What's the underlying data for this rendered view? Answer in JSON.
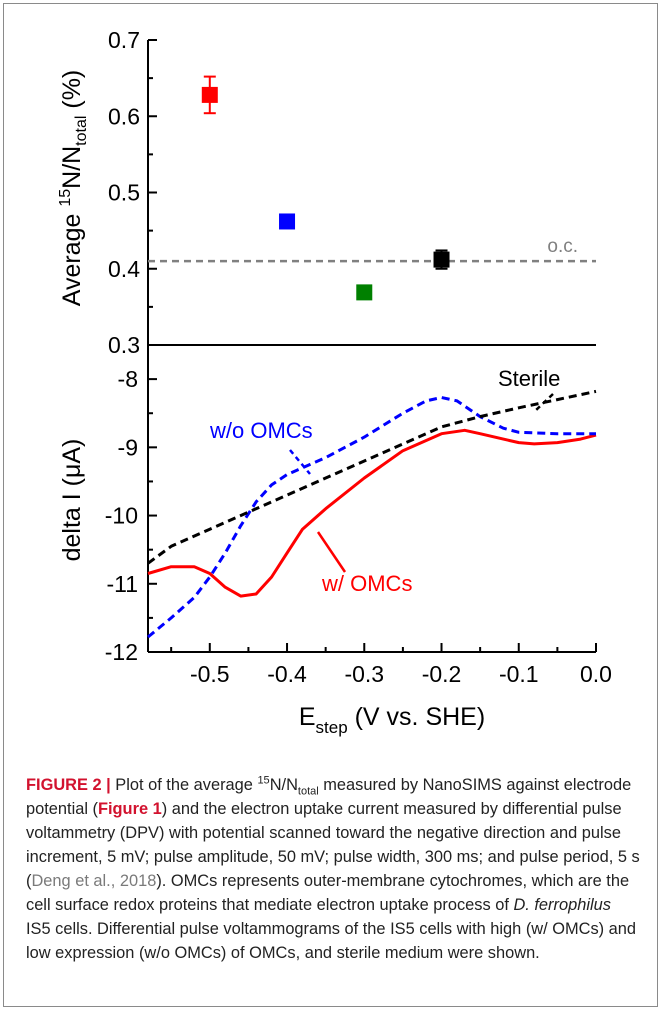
{
  "chart_data": [
    {
      "type": "scatter",
      "ylabel_parts": [
        "Average ",
        "15",
        "N/N",
        "total",
        " (%)"
      ],
      "ylim": [
        0.3,
        0.7
      ],
      "yticks": [
        "0.3",
        "0.4",
        "0.5",
        "0.6",
        "0.7"
      ],
      "xlim": [
        -0.58,
        0.0
      ],
      "points": [
        {
          "x": -0.5,
          "y": 0.628,
          "err": 0.024,
          "color": "#ff0000"
        },
        {
          "x": -0.4,
          "y": 0.462,
          "err": 0,
          "color": "#0000ff"
        },
        {
          "x": -0.3,
          "y": 0.369,
          "err": 0,
          "color": "#008000"
        },
        {
          "x": -0.2,
          "y": 0.412,
          "err": 0.012,
          "color": "#000000"
        }
      ],
      "reference_line": {
        "y": 0.41,
        "label": "o.c.",
        "color": "#808080"
      }
    },
    {
      "type": "line",
      "ylabel": "delta I (μA)",
      "xlabel_parts": [
        "E",
        "step",
        " (V vs. SHE)"
      ],
      "xlim": [
        -0.58,
        0.0
      ],
      "ylim": [
        -12,
        -7.5
      ],
      "yticks": [
        "-8",
        "-9",
        "-10",
        "-11",
        "-12"
      ],
      "xticks": [
        "-0.5",
        "-0.4",
        "-0.3",
        "-0.2",
        "-0.1",
        "0.0"
      ],
      "series": [
        {
          "name": "w/ OMCs",
          "color": "#ff0000",
          "dash": false,
          "x": [
            -0.58,
            -0.55,
            -0.52,
            -0.5,
            -0.48,
            -0.46,
            -0.44,
            -0.42,
            -0.4,
            -0.38,
            -0.35,
            -0.3,
            -0.25,
            -0.2,
            -0.17,
            -0.15,
            -0.12,
            -0.1,
            -0.08,
            -0.05,
            -0.02,
            0.0
          ],
          "y": [
            -10.85,
            -10.75,
            -10.75,
            -10.85,
            -11.05,
            -11.18,
            -11.15,
            -10.9,
            -10.55,
            -10.2,
            -9.9,
            -9.45,
            -9.05,
            -8.8,
            -8.75,
            -8.8,
            -8.88,
            -8.93,
            -8.95,
            -8.93,
            -8.88,
            -8.82
          ]
        },
        {
          "name": "w/o OMCs",
          "color": "#0000ff",
          "dash": true,
          "x": [
            -0.58,
            -0.55,
            -0.52,
            -0.5,
            -0.48,
            -0.46,
            -0.44,
            -0.42,
            -0.4,
            -0.35,
            -0.3,
            -0.25,
            -0.22,
            -0.2,
            -0.18,
            -0.15,
            -0.12,
            -0.1,
            -0.05,
            0.0
          ],
          "y": [
            -11.78,
            -11.5,
            -11.2,
            -10.9,
            -10.55,
            -10.15,
            -9.8,
            -9.55,
            -9.4,
            -9.15,
            -8.85,
            -8.5,
            -8.32,
            -8.27,
            -8.32,
            -8.55,
            -8.72,
            -8.78,
            -8.8,
            -8.8
          ]
        },
        {
          "name": "Sterile",
          "color": "#000000",
          "dash": true,
          "x": [
            -0.58,
            -0.55,
            -0.5,
            -0.45,
            -0.4,
            -0.35,
            -0.3,
            -0.25,
            -0.2,
            -0.15,
            -0.1,
            -0.05,
            0.0
          ],
          "y": [
            -10.7,
            -10.45,
            -10.2,
            -9.95,
            -9.7,
            -9.45,
            -9.2,
            -8.95,
            -8.7,
            -8.55,
            -8.42,
            -8.3,
            -8.18
          ]
        }
      ],
      "annotations": [
        {
          "text": "Sterile",
          "color": "#000000"
        },
        {
          "text": "w/o OMCs",
          "color": "#0000ff"
        },
        {
          "text": "w/ OMCs",
          "color": "#ff0000"
        }
      ]
    }
  ],
  "caption": {
    "label": "FIGURE 2 |",
    "p1": " Plot of the average ",
    "sup": "15",
    "p2": "N/N",
    "sub": "total",
    "p3": " measured by NanoSIMS against electrode potential (",
    "figref": "Figure 1",
    "p4": ") and the electron uptake current measured by differential pulse voltammetry (DPV) with potential scanned toward the negative direction and pulse increment, 5 mV; pulse amplitude, 50 mV; pulse width, 300 ms; and pulse period, 5 s (",
    "cite": "Deng et al., 2018",
    "p5": "). OMCs represents outer-membrane cytochromes, which are the cell surface redox proteins that mediate electron uptake process of ",
    "species": "D. ferrophilus",
    "p6": " IS5 cells. Differential pulse voltammograms of the IS5 cells with high (w/ OMCs) and low expression (w/o OMCs) of OMCs, and sterile medium were shown."
  }
}
